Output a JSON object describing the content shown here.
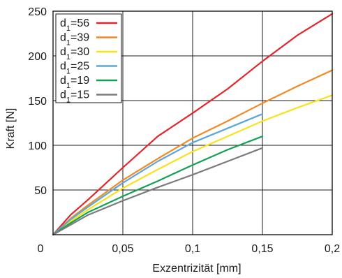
{
  "chart_data": {
    "type": "line",
    "xlabel": "Exzentrizität [mm]",
    "ylabel": "Kraft [N]",
    "xlim": [
      0,
      0.2
    ],
    "x_ticks": [
      {
        "value": 0.05,
        "label": "0,05"
      },
      {
        "value": 0.1,
        "label": "0,1"
      },
      {
        "value": 0.15,
        "label": "0,15"
      },
      {
        "value": 0.2,
        "label": "0,2"
      }
    ],
    "y_ticks": [
      {
        "value": 50,
        "label": "50"
      },
      {
        "value": 100,
        "label": "100"
      },
      {
        "value": 150,
        "label": "150"
      },
      {
        "value": 200,
        "label": "200"
      },
      {
        "value": 250,
        "label": "250"
      }
    ],
    "origin_label": "0",
    "grid": true,
    "legend_position": "top-left",
    "series": [
      {
        "name_main": "d",
        "name_sub": "1",
        "name_suffix": "=56",
        "color": "#e3252b",
        "x": [
          0,
          0.0125,
          0.025,
          0.05,
          0.075,
          0.1,
          0.125,
          0.15,
          0.175,
          0.2
        ],
        "y": [
          0,
          22,
          39,
          75,
          110,
          136,
          163,
          194,
          223,
          247
        ]
      },
      {
        "name_main": "d",
        "name_sub": "1",
        "name_suffix": "=39",
        "color": "#f08a24",
        "x": [
          0,
          0.0125,
          0.025,
          0.05,
          0.075,
          0.1,
          0.125,
          0.15,
          0.175,
          0.2
        ],
        "y": [
          0,
          18,
          33,
          61,
          85,
          108,
          127,
          147,
          166,
          184
        ]
      },
      {
        "name_main": "d",
        "name_sub": "1",
        "name_suffix": "=30",
        "color": "#f7e21c",
        "x": [
          0,
          0.0125,
          0.025,
          0.05,
          0.075,
          0.1,
          0.125,
          0.15,
          0.175,
          0.2
        ],
        "y": [
          0,
          15,
          28,
          52,
          73,
          93,
          110,
          127,
          142,
          156
        ]
      },
      {
        "name_main": "d",
        "name_sub": "1",
        "name_suffix": "=25",
        "color": "#5ca6da",
        "x": [
          0,
          0.0125,
          0.025,
          0.05,
          0.075,
          0.1,
          0.125,
          0.15
        ],
        "y": [
          0,
          17,
          31,
          58,
          82,
          103,
          119,
          135
        ]
      },
      {
        "name_main": "d",
        "name_sub": "1",
        "name_suffix": "=19",
        "color": "#13a052",
        "x": [
          0,
          0.0125,
          0.025,
          0.05,
          0.075,
          0.1,
          0.125,
          0.15
        ],
        "y": [
          0,
          13,
          25,
          43,
          60,
          78,
          95,
          110
        ]
      },
      {
        "name_main": "d",
        "name_sub": "1",
        "name_suffix": "=15",
        "color": "#7b7b7b",
        "x": [
          0,
          0.0125,
          0.025,
          0.05,
          0.075,
          0.1,
          0.125,
          0.15
        ],
        "y": [
          0,
          11,
          22,
          38,
          53,
          67,
          82,
          97
        ]
      }
    ]
  }
}
